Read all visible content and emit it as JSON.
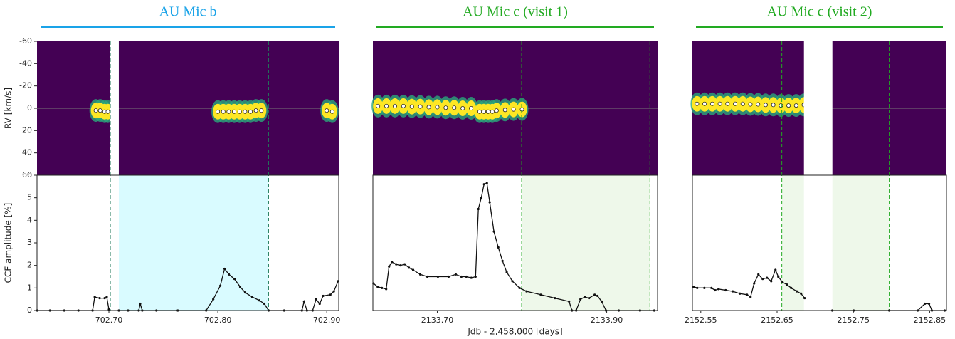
{
  "chart_data": [
    {
      "type": "rv_ccf_panel",
      "title": "AU Mic b",
      "title_color": "#1aa3e8",
      "ylabel_top": "RV [km/s]",
      "ylabel_bottom": "CCF amplitude [%]",
      "xlim": [
        702.634,
        702.911
      ],
      "xticks": [
        {
          "value": 702.7,
          "label": "702.70"
        },
        {
          "value": 702.8,
          "label": "702.80"
        },
        {
          "value": 702.9,
          "label": "702.90"
        }
      ],
      "rv_ylim": [
        -60,
        60
      ],
      "rv_inverted": true,
      "rv_yticks": [
        -60,
        -40,
        -20,
        0,
        20,
        40,
        60
      ],
      "ccf_ylim": [
        0,
        6
      ],
      "ccf_yticks": [
        0,
        1,
        2,
        3,
        4,
        5,
        6
      ],
      "heatmap_color": "#440154",
      "shade_color": "#d9fbff",
      "transit_line_color": "#1f7a5a",
      "transit_lines": [
        702.7013,
        702.8466
      ],
      "shaded_spans": [
        [
          702.7091,
          702.8466
        ]
      ],
      "data_gaps": [
        [
          702.7013,
          702.7091
        ]
      ],
      "rv": {
        "x": [
          702.688,
          702.692,
          702.696,
          702.699,
          702.8,
          702.805,
          702.81,
          702.815,
          702.82,
          702.825,
          702.83,
          702.835,
          702.84,
          702.9,
          702.905
        ],
        "values": [
          2,
          2,
          3,
          3,
          3,
          3,
          3,
          3,
          3,
          3,
          3,
          2,
          2,
          2,
          3
        ]
      },
      "ccf": {
        "x": [
          702.6342,
          702.6459,
          702.659,
          702.672,
          702.685,
          702.687,
          702.6915,
          702.6961,
          702.698,
          702.7,
          702.705,
          702.7091,
          702.7176,
          702.7274,
          702.7287,
          702.7306,
          702.7436,
          702.7632,
          702.7893,
          702.7958,
          702.8023,
          702.8062,
          702.8101,
          702.8153,
          702.8205,
          702.8251,
          702.8316,
          702.8381,
          702.8427,
          702.8466,
          702.8609,
          702.8772,
          702.8792,
          702.8818,
          702.887,
          702.8902,
          702.8935,
          702.8967,
          702.9033,
          702.9065,
          702.9104
        ],
        "values": [
          0,
          0,
          0,
          0,
          0,
          0.6,
          0.55,
          0.55,
          0.6,
          0.05,
          null,
          0,
          0,
          0,
          0.3,
          0,
          0,
          0,
          0,
          0.5,
          1.1,
          1.85,
          1.6,
          1.4,
          1.05,
          0.8,
          0.6,
          0.45,
          0.3,
          0,
          0,
          0,
          0.4,
          0,
          0,
          0.5,
          0.3,
          0.65,
          0.7,
          0.85,
          1.3
        ]
      }
    },
    {
      "type": "rv_ccf_panel",
      "title": "AU Mic c (visit 1)",
      "title_color": "#22aa22",
      "xlabel": "Jdb - 2,458,000 [days]",
      "xlim": [
        2133.624,
        2133.96
      ],
      "xticks": [
        {
          "value": 2133.7,
          "label": "2133.70"
        },
        {
          "value": 2133.9,
          "label": "2133.90"
        }
      ],
      "rv_ylim": [
        -60,
        60
      ],
      "rv_inverted": true,
      "ccf_ylim": [
        0,
        6
      ],
      "heatmap_color": "#440154",
      "shade_color": "#eef8ea",
      "transit_line_color": "#22aa22",
      "transit_lines": [
        2133.7996,
        2133.951
      ],
      "shaded_spans": [
        [
          2133.7996,
          2133.951
        ]
      ],
      "data_gaps": [],
      "rv": {
        "x": [
          2133.63,
          2133.64,
          2133.65,
          2133.66,
          2133.67,
          2133.68,
          2133.69,
          2133.7,
          2133.71,
          2133.72,
          2133.73,
          2133.74,
          2133.75,
          2133.755,
          2133.76,
          2133.765,
          2133.77,
          2133.78,
          2133.79,
          2133.8
        ],
        "values": [
          -2,
          -2,
          -2,
          -2,
          -1.5,
          -1.5,
          -1,
          -1,
          -0.5,
          -0.5,
          0,
          0,
          3,
          3,
          3,
          3,
          2,
          1.5,
          1,
          1
        ]
      },
      "ccf": {
        "x": [
          2133.6247,
          2133.6297,
          2133.6347,
          2133.6397,
          2133.6431,
          2133.6464,
          2133.6515,
          2133.6565,
          2133.6615,
          2133.6665,
          2133.6715,
          2133.6799,
          2133.6883,
          2133.7008,
          2133.7134,
          2133.7218,
          2133.7285,
          2133.7343,
          2133.7402,
          2133.7452,
          2133.7485,
          2133.7519,
          2133.7552,
          2133.7586,
          2133.7619,
          2133.7669,
          2133.772,
          2133.777,
          2133.782,
          2133.7887,
          2133.7971,
          2133.8054,
          2133.8222,
          2133.8389,
          2133.8556,
          2133.859,
          2133.864,
          2133.869,
          2133.8741,
          2133.8791,
          2133.8858,
          2133.8891,
          2133.8941,
          2133.8992,
          2133.9142,
          2133.9393,
          2133.9561
        ],
        "values": [
          1.2,
          1.05,
          1.0,
          0.95,
          1.95,
          2.15,
          2.05,
          2.0,
          2.05,
          1.9,
          1.8,
          1.6,
          1.5,
          1.5,
          1.5,
          1.6,
          1.5,
          1.5,
          1.45,
          1.5,
          4.5,
          5.0,
          5.6,
          5.65,
          4.8,
          3.5,
          2.8,
          2.2,
          1.7,
          1.3,
          1.0,
          0.85,
          0.7,
          0.55,
          0.4,
          0,
          0,
          0.5,
          0.6,
          0.55,
          0.7,
          0.65,
          0.4,
          0,
          0,
          0,
          0
        ]
      }
    },
    {
      "type": "rv_ccf_panel",
      "title": "AU Mic c (visit 2)",
      "title_color": "#22aa22",
      "xlim": [
        2152.539,
        2152.872
      ],
      "xticks": [
        {
          "value": 2152.55,
          "label": "2152.55"
        },
        {
          "value": 2152.65,
          "label": "2152.65"
        },
        {
          "value": 2152.75,
          "label": "2152.75"
        },
        {
          "value": 2152.85,
          "label": "2152.85"
        }
      ],
      "rv_ylim": [
        -60,
        60
      ],
      "rv_inverted": true,
      "ccf_ylim": [
        0,
        6
      ],
      "heatmap_color": "#440154",
      "shade_color": "#eef8ea",
      "transit_line_color": "#22aa22",
      "transit_lines": [
        2152.6562,
        2152.797
      ],
      "shaded_spans": [
        [
          2152.6562,
          2152.6852
        ],
        [
          2152.7225,
          2152.797
        ]
      ],
      "data_gaps": [
        [
          2152.6852,
          2152.7225
        ]
      ],
      "rv": {
        "x": [
          2152.545,
          2152.555,
          2152.565,
          2152.575,
          2152.585,
          2152.595,
          2152.605,
          2152.615,
          2152.625,
          2152.635,
          2152.645,
          2152.655,
          2152.665,
          2152.675,
          2152.685
        ],
        "values": [
          -4,
          -4,
          -4,
          -4,
          -4,
          -4,
          -4,
          -3.5,
          -3.5,
          -3,
          -3,
          -2.5,
          -2.5,
          -2.5,
          -3
        ]
      },
      "ccf": {
        "x": [
          2152.5407,
          2152.5453,
          2152.5547,
          2152.564,
          2152.5686,
          2152.5733,
          2152.5826,
          2152.5919,
          2152.6013,
          2152.6106,
          2152.6152,
          2152.6199,
          2152.6255,
          2152.6311,
          2152.6367,
          2152.6423,
          2152.6479,
          2152.6516,
          2152.6572,
          2152.6628,
          2152.6684,
          2152.6758,
          2152.6814,
          2152.6861,
          2152.7038,
          2152.7224,
          2152.7504,
          2152.797,
          2152.8343,
          2152.8436,
          2152.8492,
          2152.8529,
          2152.8697
        ],
        "values": [
          1.05,
          1.0,
          1.0,
          1.0,
          0.9,
          0.95,
          0.9,
          0.85,
          0.75,
          0.7,
          0.6,
          1.2,
          1.6,
          1.4,
          1.45,
          1.3,
          1.8,
          1.5,
          1.25,
          1.15,
          1.0,
          0.85,
          0.75,
          0.55,
          null,
          0,
          0,
          0,
          0,
          0.3,
          0.3,
          0,
          0
        ]
      }
    }
  ]
}
